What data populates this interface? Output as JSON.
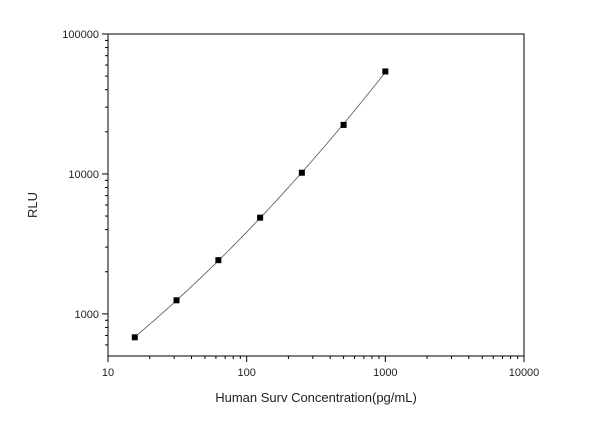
{
  "chart_data": {
    "type": "scatter",
    "title": "",
    "xlabel": "Human Surv Concentration(pg/mL)",
    "ylabel": "RLU",
    "xscale": "log",
    "yscale": "log",
    "xlim": [
      10,
      10000
    ],
    "ylim": [
      500,
      100000
    ],
    "x_ticks": [
      "10",
      "100",
      "1000",
      "10000"
    ],
    "y_ticks": [
      "1000",
      "10000",
      "100000"
    ],
    "grid": false,
    "legend": "none",
    "series": [
      {
        "x": [
          15.6,
          31.2,
          62.5,
          125,
          250,
          500,
          1000
        ],
        "y": [
          680,
          1250,
          2420,
          4870,
          10200,
          22400,
          54000
        ],
        "marker": "square",
        "fit_line": true
      }
    ],
    "colors": {
      "marker": "#000000",
      "line": "#555555",
      "axis": "#000000"
    }
  }
}
